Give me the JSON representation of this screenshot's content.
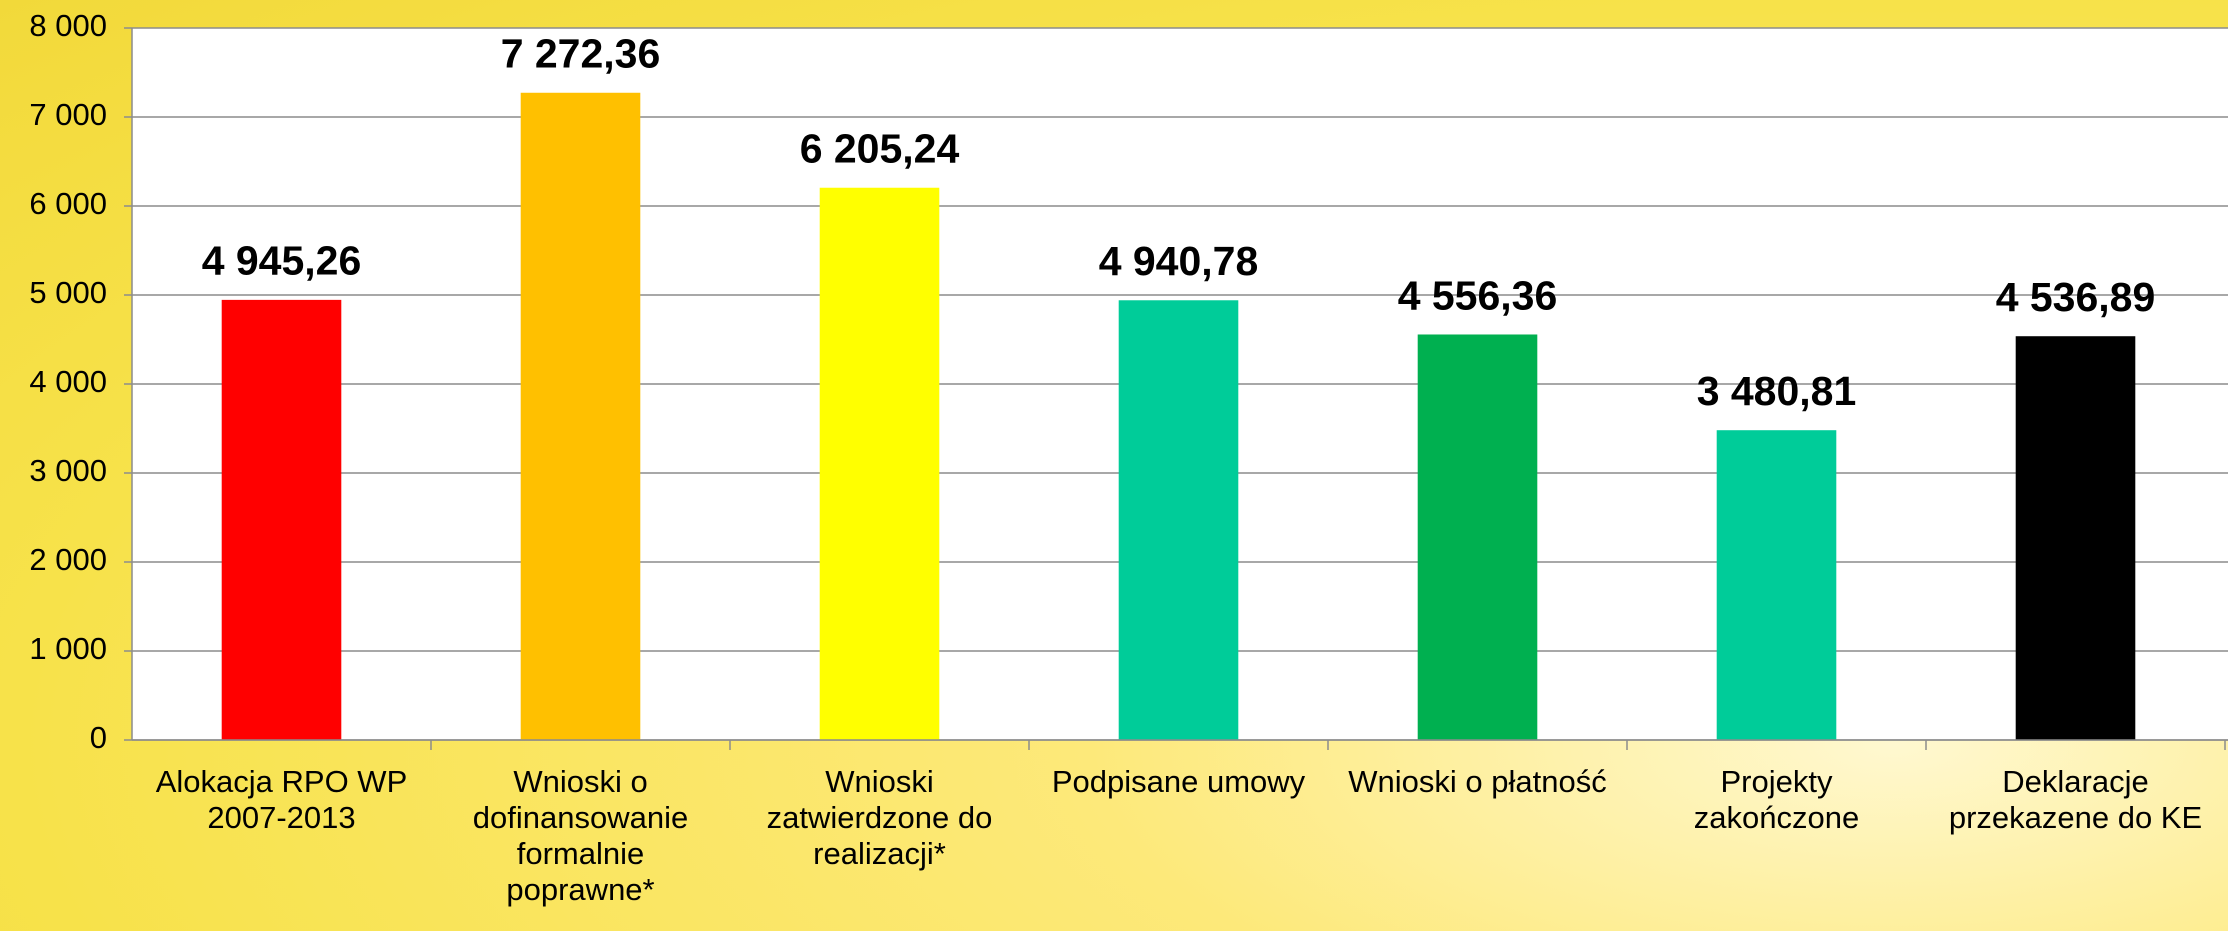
{
  "chart_data": {
    "type": "bar",
    "categories": [
      "Alokacja RPO WP 2007-2013",
      "Wnioski o dofinansowanie formalnie poprawne*",
      "Wnioski zatwierdzone do realizacji*",
      "Podpisane umowy",
      "Wnioski o płatność",
      "Projekty zakończone",
      "Deklaracje przekazene do KE"
    ],
    "values": [
      4945.26,
      7272.36,
      6205.24,
      4940.78,
      4556.36,
      3480.81,
      4536.89
    ],
    "value_labels": [
      "4 945,26",
      "7 272,36",
      "6 205,24",
      "4 940,78",
      "4 556,36",
      "3 480,81",
      "4 536,89"
    ],
    "colors": [
      "#ff0000",
      "#ffc000",
      "#ffff00",
      "#00cc99",
      "#00b050",
      "#00cc99",
      "#000000"
    ],
    "ylim": [
      0,
      8000
    ],
    "yticks": [
      0,
      {
        "value": 1000,
        "label": "1 000"
      },
      {
        "value": 2000,
        "label": "2 000"
      },
      {
        "value": 3000,
        "label": "3 000"
      },
      {
        "value": 4000,
        "label": "4 000"
      },
      {
        "value": 5000,
        "label": "5 000"
      },
      {
        "value": 6000,
        "label": "6 000"
      },
      {
        "value": 7000,
        "label": "7 000"
      },
      {
        "value": 8000,
        "label": "8 000"
      }
    ],
    "grid": true
  }
}
